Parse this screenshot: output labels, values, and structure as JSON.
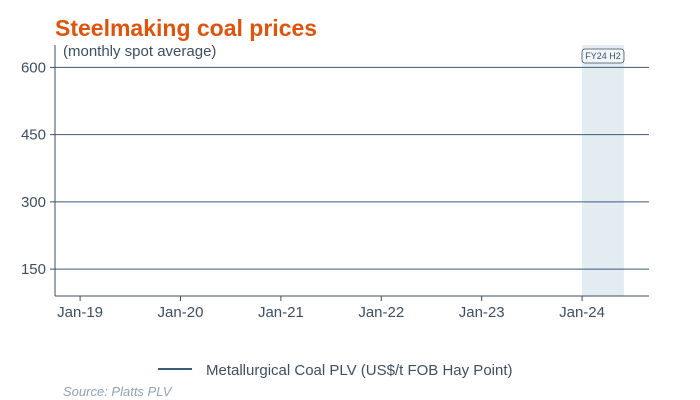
{
  "chart_data": {
    "type": "line",
    "title": "Steelmaking coal prices",
    "subtitle": "(monthly spot average)",
    "xlabel": "",
    "ylabel": "",
    "x_ticks": [
      "Jan-19",
      "Jan-20",
      "Jan-21",
      "Jan-22",
      "Jan-23",
      "Jan-24"
    ],
    "x_range": [
      "2018-10",
      "2024-09"
    ],
    "y_ticks": [
      150,
      300,
      450,
      600
    ],
    "ylim": [
      90,
      650
    ],
    "grid": "horizontal",
    "series": [
      {
        "name": "Metallurgical Coal PLV (US$/t FOB Hay Point)",
        "values": [],
        "color": "#3d5a80"
      }
    ],
    "highlight_band": {
      "label": "FY24 H2",
      "from": "2024-01",
      "to": "2024-06",
      "color": "#e3ecf1"
    },
    "legend_placement": "bottom-center",
    "source": "Source: Platts PLV"
  },
  "colors": {
    "title": "#e0530c",
    "axis": "#3d4f63",
    "grid": "#3d5a80",
    "source": "#8fa3b8"
  }
}
